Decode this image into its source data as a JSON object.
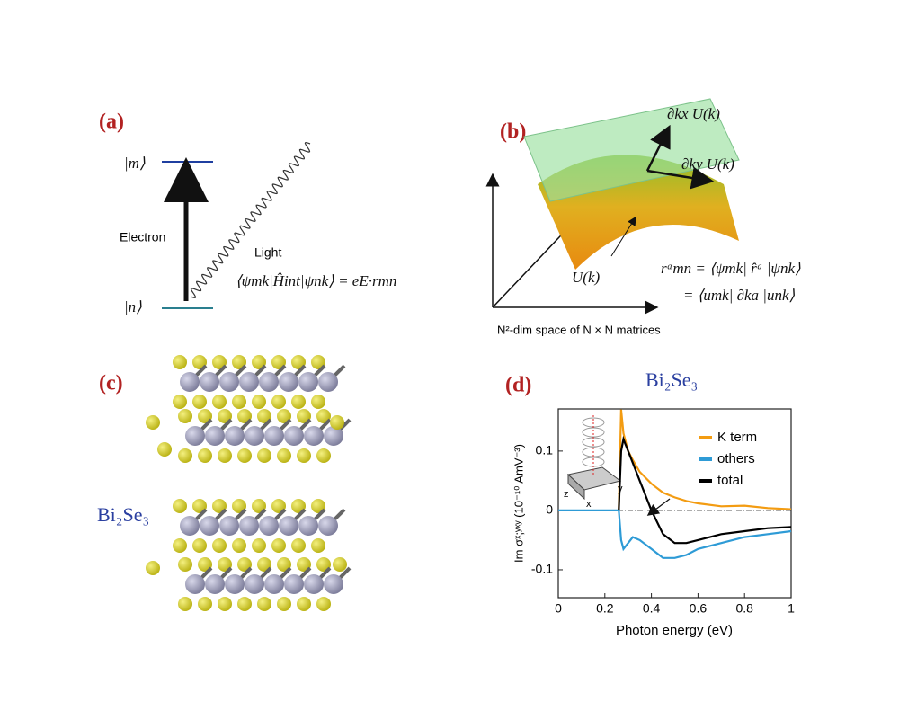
{
  "panel_a": {
    "label": "(a)",
    "state_m": "|m⟩",
    "state_n": "|n⟩",
    "electron": "Electron",
    "light": "Light",
    "equation": "⟨ψmk|Ĥint|ψnk⟩ = eE·rmn"
  },
  "panel_b": {
    "label": "(b)",
    "derivative_x": "∂kx U(k)",
    "derivative_y": "∂ky U(k)",
    "surface": "U(k)",
    "equation_1": "rᵃmn = ⟨ψmk| r̂ᵃ |ψnk⟩",
    "equation_2": "= ⟨umk| ∂ka |unk⟩",
    "caption": "N²-dim space of N × N matrices"
  },
  "panel_c": {
    "label": "(c)",
    "material": "Bi₂Se₃"
  },
  "chart_data": {
    "type": "line",
    "label": "(d)",
    "title": "Bi₂Se₃",
    "xlabel": "Photon energy (eV)",
    "ylabel": "Im σˣ;ʸˣʸ (10⁻¹⁰ AmV⁻³)",
    "inset_labels": [
      "x",
      "y",
      "z"
    ],
    "x": [
      0,
      0.1,
      0.2,
      0.26,
      0.27,
      0.28,
      0.3,
      0.32,
      0.35,
      0.4,
      0.45,
      0.5,
      0.55,
      0.6,
      0.7,
      0.8,
      0.9,
      1.0
    ],
    "series": [
      {
        "name": "K term",
        "color": "#f39c12",
        "values": [
          null,
          null,
          null,
          0,
          0.17,
          0.13,
          0.1,
          0.085,
          0.065,
          0.045,
          0.03,
          0.022,
          0.016,
          0.012,
          0.007,
          0.008,
          0.004,
          0.002
        ]
      },
      {
        "name": "others",
        "color": "#2e9bd6",
        "values": [
          0,
          0,
          0,
          0,
          -0.05,
          -0.065,
          -0.055,
          -0.045,
          -0.05,
          -0.065,
          -0.08,
          -0.08,
          -0.075,
          -0.065,
          -0.055,
          -0.045,
          -0.04,
          -0.035
        ]
      },
      {
        "name": "total",
        "color": "#000000",
        "values": [
          null,
          null,
          null,
          0,
          0.1,
          0.12,
          0.1,
          0.08,
          0.05,
          0.0,
          -0.04,
          -0.055,
          -0.055,
          -0.05,
          -0.04,
          -0.035,
          -0.03,
          -0.028
        ]
      }
    ],
    "xlim": [
      0,
      1
    ],
    "ylim": [
      -0.147,
      0.171
    ],
    "xticks": [
      0,
      0.2,
      0.4,
      0.6,
      0.8,
      1
    ],
    "yticks": [
      -0.1,
      0,
      0.1
    ],
    "legend": "upper right",
    "zero_line": true
  }
}
